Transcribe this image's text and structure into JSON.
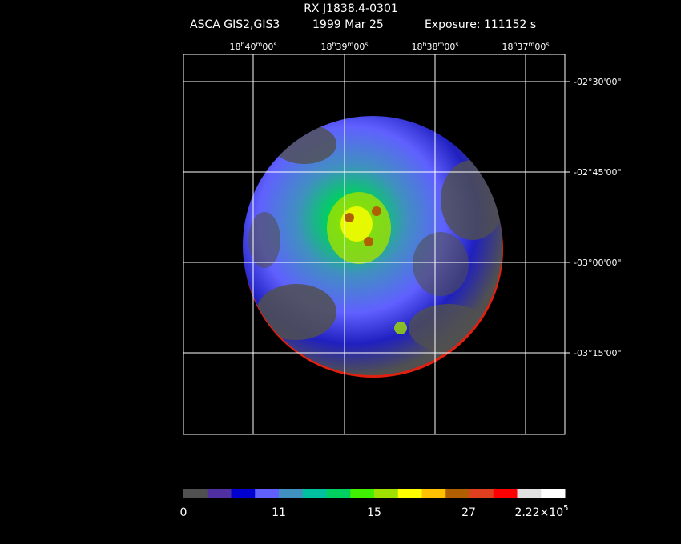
{
  "title": "RX J1838.4-0301",
  "subtitle": {
    "instrument": "ASCA GIS2,GIS3",
    "date": "1999 Mar 25",
    "exposure": "Exposure: 111152 s"
  },
  "ra_labels": [
    [
      "18",
      "h",
      "40",
      "m",
      "00",
      "s"
    ],
    [
      "18",
      "h",
      "39",
      "m",
      "00",
      "s"
    ],
    [
      "18",
      "h",
      "38",
      "m",
      "00",
      "s"
    ],
    [
      "18",
      "h",
      "37",
      "m",
      "00",
      "s"
    ]
  ],
  "dec_labels": [
    "-02°30'00\"",
    "-02°45'00\"",
    "-03°00'00\"",
    "-03°15'00\""
  ],
  "colorbar": {
    "colors": [
      "#505050",
      "#5030a0",
      "#0000d0",
      "#6060ff",
      "#4090c0",
      "#00c0a0",
      "#00d060",
      "#40f000",
      "#a0e000",
      "#ffff00",
      "#ffc000",
      "#b06000",
      "#e04020",
      "#ff0000",
      "#e0e0e0",
      "#ffffff"
    ],
    "labels": [
      "0",
      "11",
      "15",
      "27",
      {
        "mantissa": "2.22×10",
        "exponent": "5"
      }
    ]
  }
}
